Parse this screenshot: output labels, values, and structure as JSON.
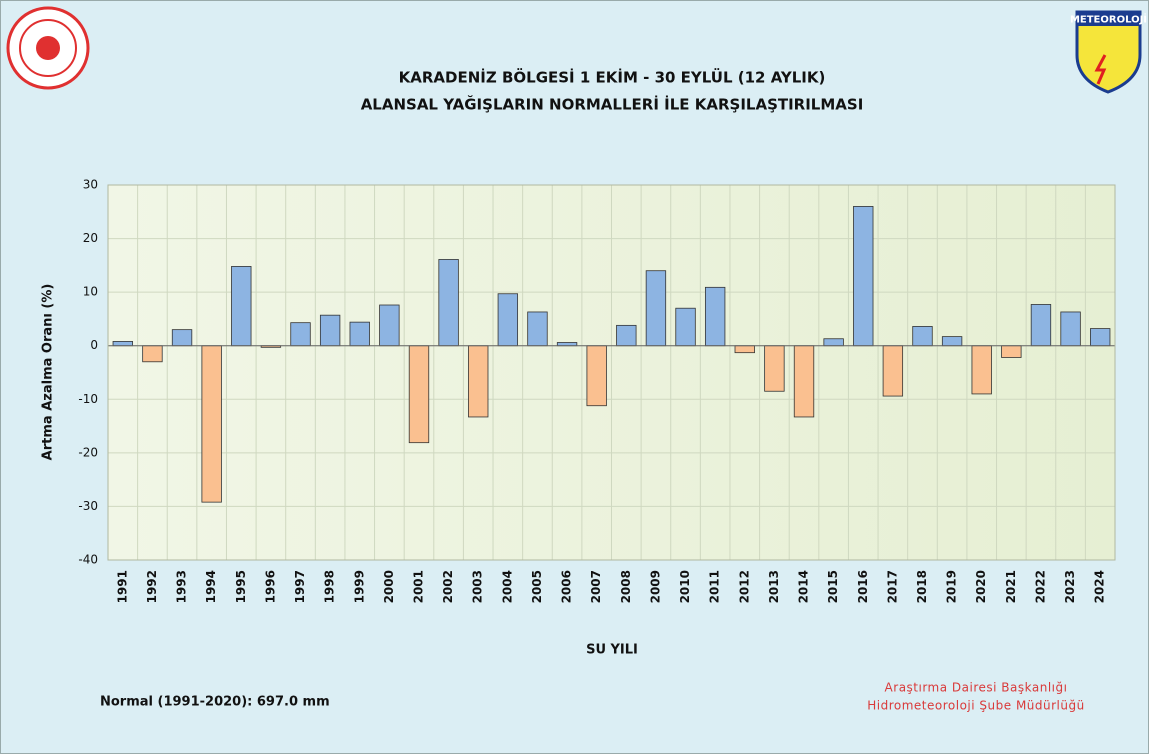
{
  "chart_data": {
    "type": "bar",
    "title": "KARADENİZ BÖLGESİ  1 EKİM - 30 EYLÜL (12 AYLIK)",
    "subtitle": "ALANSAL YAĞIŞLARIN NORMALLERİ İLE KARŞILAŞTIRILMASI",
    "y_label": "Artma Azalma Oranı (%)",
    "x_label": "SU YILI",
    "note": "Normal (1991-2020):  697.0 mm",
    "credit": [
      "Araştırma Dairesi Başkanlığı",
      "Hidrometeoroloji Şube Müdürlüğü"
    ],
    "logo_text": "METEOROLOJİ",
    "categories": [
      "1991",
      "1992",
      "1993",
      "1994",
      "1995",
      "1996",
      "1997",
      "1998",
      "1999",
      "2000",
      "2001",
      "2002",
      "2003",
      "2004",
      "2005",
      "2006",
      "2007",
      "2008",
      "2009",
      "2010",
      "2011",
      "2012",
      "2013",
      "2014",
      "2015",
      "2016",
      "2017",
      "2018",
      "2019",
      "2020",
      "2021",
      "2022",
      "2023",
      "2024"
    ],
    "values": [
      0.8,
      -3,
      3,
      -29.2,
      14.8,
      -0.3,
      4.3,
      5.7,
      4.4,
      7.6,
      -18.1,
      16.1,
      -13.3,
      9.7,
      6.3,
      0.6,
      -11.2,
      3.8,
      14,
      7,
      10.9,
      -1.3,
      -8.5,
      -13.3,
      1.3,
      26,
      -9.4,
      3.6,
      1.7,
      -9,
      -2.2,
      7.7,
      6.3,
      3.2
    ],
    "positive_color": "#8db4e2",
    "negative_color": "#fac090",
    "ylim": [
      -40,
      30
    ],
    "yticks": [
      -40,
      -30,
      -20,
      -10,
      0,
      10,
      20,
      30
    ],
    "grid": true
  }
}
